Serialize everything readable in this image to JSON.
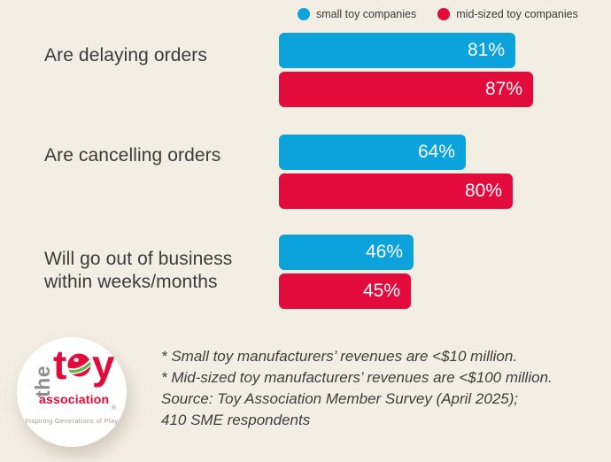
{
  "page": {
    "background_color": "#F3EEE4"
  },
  "legend": {
    "items": [
      {
        "label": "small toy companies",
        "color": "#0CA2DB"
      },
      {
        "label": "mid-sized toy companies",
        "color": "#E20B3C"
      }
    ]
  },
  "chart_data": {
    "type": "bar",
    "orientation": "horizontal",
    "title": "",
    "categories": [
      "Are delaying orders",
      "Are cancelling orders",
      "Will go out of business within weeks/months"
    ],
    "series": [
      {
        "name": "small toy companies",
        "color": "#0CA2DB",
        "values": [
          81,
          64,
          46
        ]
      },
      {
        "name": "mid-sized toy companies",
        "color": "#E20B3C",
        "values": [
          87,
          80,
          45
        ]
      }
    ],
    "value_suffix": "%",
    "value_labels": "inside-end",
    "xlim": [
      0,
      100
    ],
    "grid": false,
    "legend_position": "top"
  },
  "footnotes": {
    "lines": [
      "* Small toy manufacturers’ revenues are <$10 million.",
      "* Mid-sized toy manufacturers’  revenues are <$100 million.",
      "Source: Toy Association Member Survey (April 2025);",
      "410 SME respondents"
    ]
  },
  "logo": {
    "the": "the",
    "toy_t": "t",
    "toy_y": "y",
    "association": "association",
    "registered": "®",
    "tagline": "Inspiring Generations of Play",
    "brand_red": "#E20B3C",
    "brand_gray": "#8D8D8D",
    "ball_green": "#5CB947"
  }
}
